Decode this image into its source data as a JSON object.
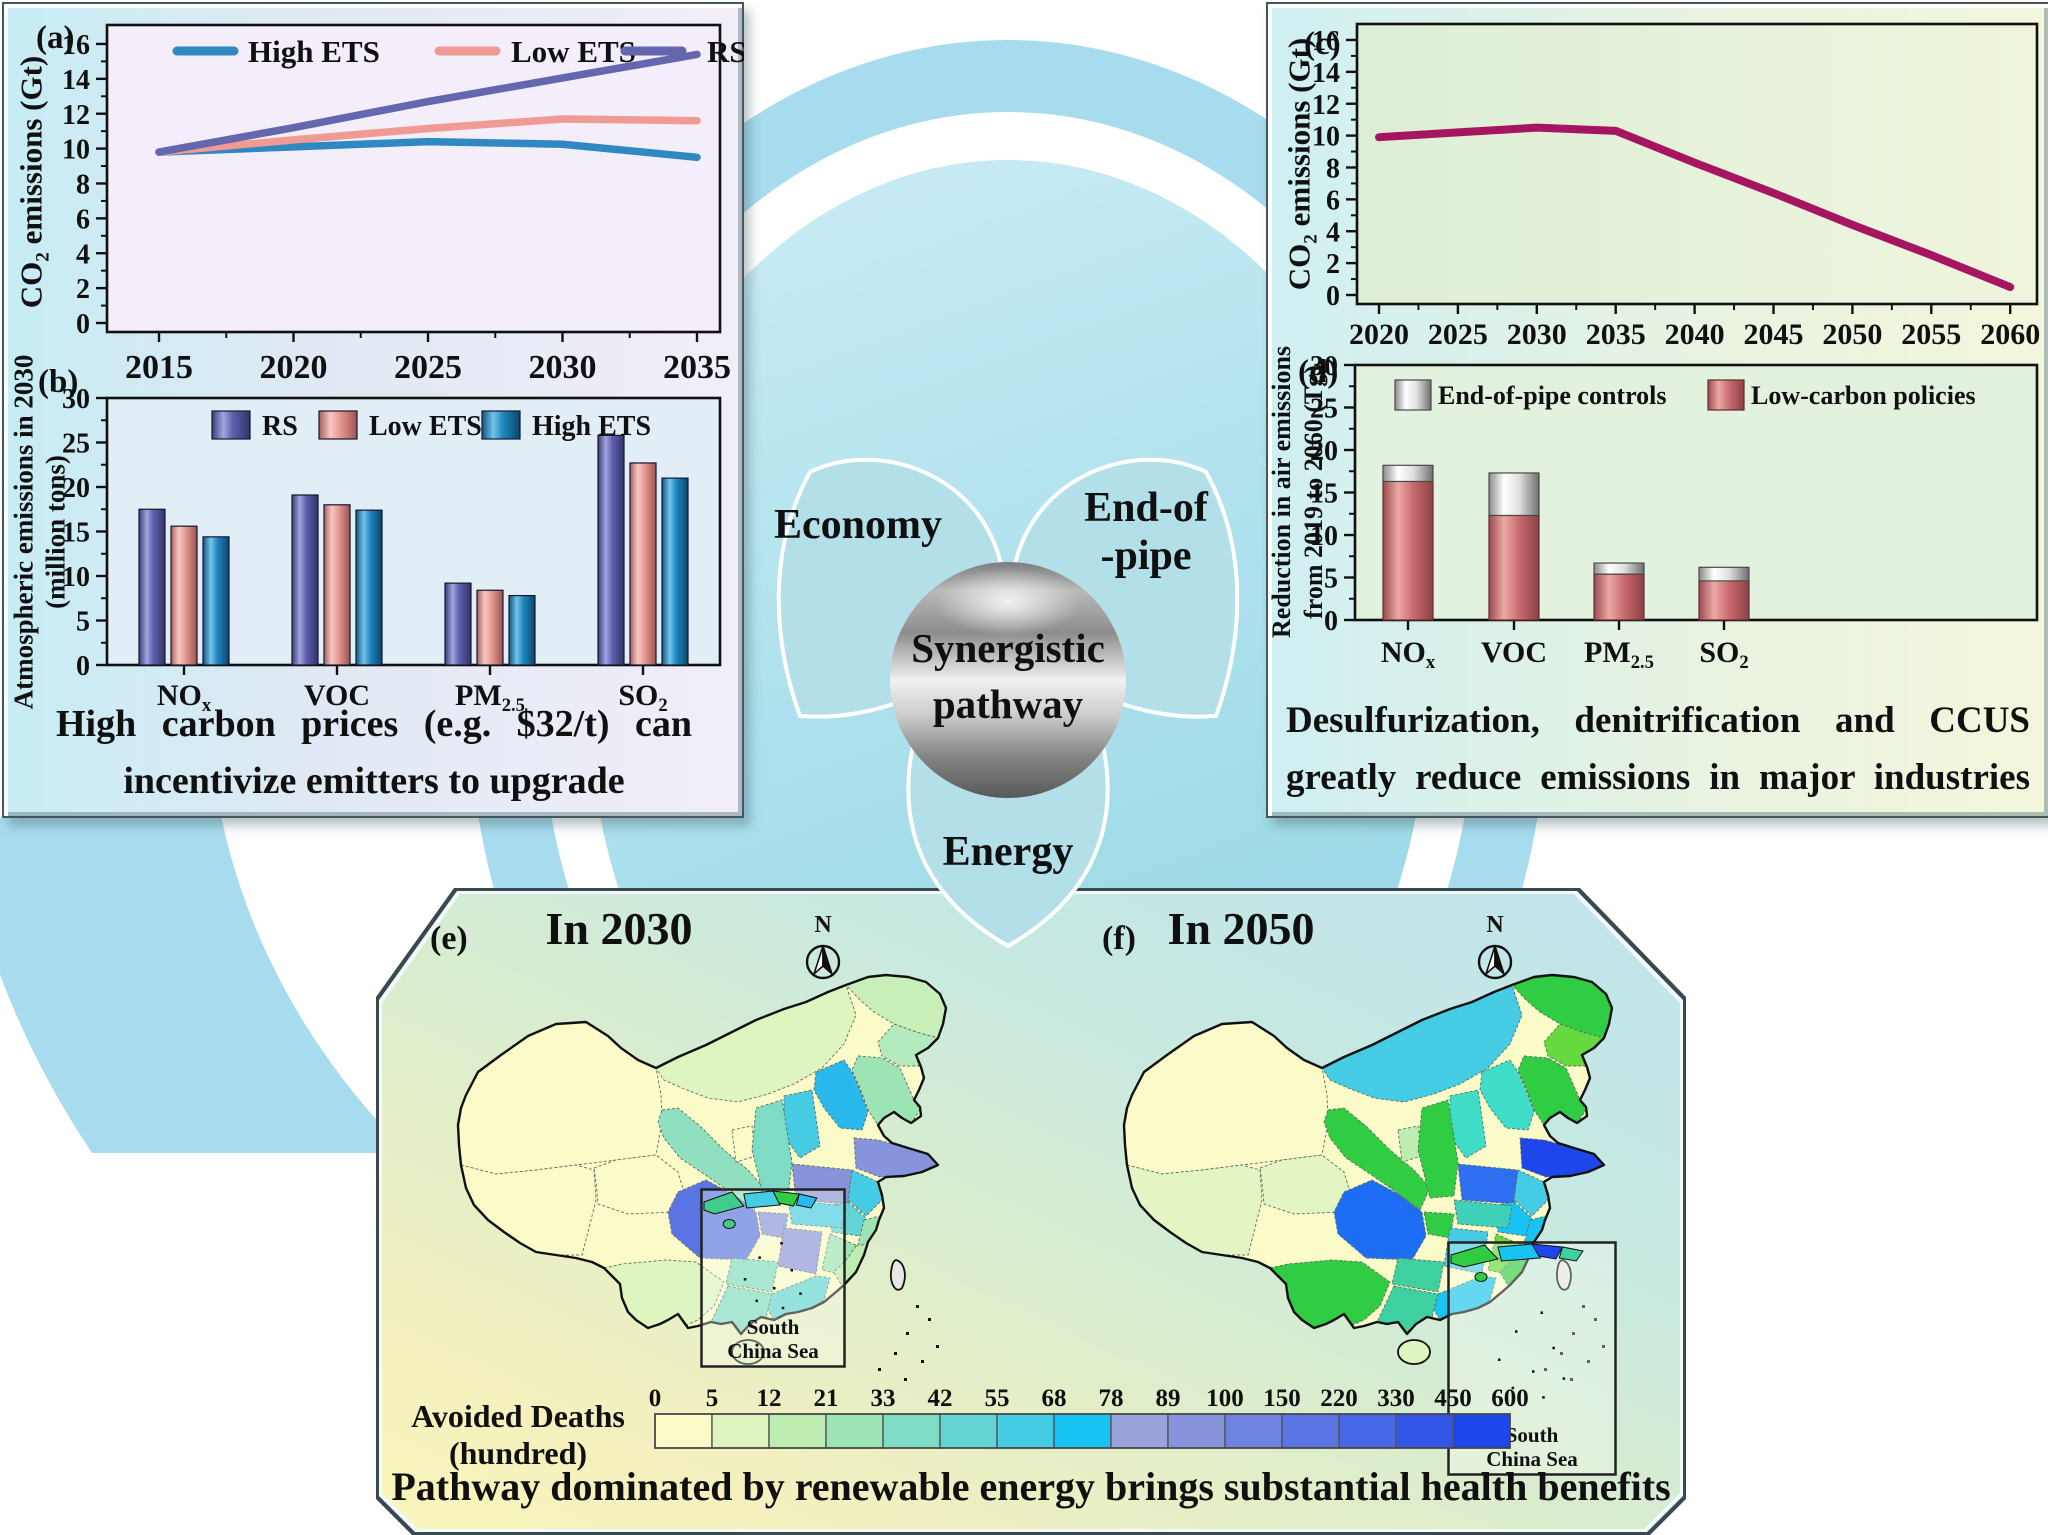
{
  "panels": {
    "a": {
      "letter": "(a)"
    },
    "b": {
      "letter": "(b)"
    },
    "c": {
      "letter": "(c)"
    },
    "d": {
      "letter": "(d)"
    },
    "e": {
      "letter": "(e)"
    },
    "f": {
      "letter": "(f)"
    }
  },
  "captions": {
    "left": [
      "High carbon prices (e.g. $32/t) can",
      "incentivize emitters to upgrade"
    ],
    "right": [
      "Desulfurization, denitrification and CCUS",
      "greatly reduce emissions in major industries"
    ],
    "bottom": "Pathway dominated by renewable energy brings substantial health benefits"
  },
  "center": {
    "petal_left": "Economy",
    "petal_right": [
      "End-of",
      "-pipe"
    ],
    "petal_bottom": "Energy",
    "sphere": [
      "Synergistic",
      "pathway"
    ]
  },
  "chart_data": [
    {
      "id": "a",
      "type": "line",
      "ylabel": "CO|2| emissions (Gt)",
      "ylim": [
        0,
        16.8
      ],
      "yticks": [
        0,
        2,
        4,
        6,
        8,
        10,
        12,
        14,
        16
      ],
      "x": [
        2015,
        2020,
        2025,
        2030,
        2035
      ],
      "xticks": [
        2015,
        2020,
        2025,
        2030,
        2035
      ],
      "legend_position": "top-inside",
      "series": [
        {
          "name": "High ETS",
          "color": "#2f88c2",
          "values": [
            9.8,
            10.1,
            10.4,
            10.25,
            9.5
          ]
        },
        {
          "name": "Low ETS",
          "color": "#ef9a93",
          "values": [
            9.8,
            10.5,
            11.15,
            11.7,
            11.6
          ]
        },
        {
          "name": "RS",
          "color": "#6466ae",
          "values": [
            9.8,
            11.2,
            12.7,
            14.05,
            15.4
          ]
        }
      ]
    },
    {
      "id": "b",
      "type": "bar",
      "ylabel": [
        "Atmospheric emissions in 2030",
        "(million tons)"
      ],
      "ylim": [
        0,
        30
      ],
      "yticks": [
        0,
        5,
        10,
        15,
        20,
        25,
        30
      ],
      "categories": [
        "NO|x",
        "VOC",
        "PM|2.5",
        "SO|2"
      ],
      "series": [
        {
          "name": "RS",
          "color": "#5d5fae",
          "values": [
            17.5,
            19.1,
            9.2,
            25.8
          ]
        },
        {
          "name": "Low ETS",
          "color": "#e59a94",
          "values": [
            15.6,
            18.0,
            8.4,
            22.7
          ]
        },
        {
          "name": "High ETS",
          "color": "#1f87c0",
          "values": [
            14.4,
            17.4,
            7.8,
            21.0
          ]
        }
      ]
    },
    {
      "id": "c",
      "type": "line",
      "ylabel": "CO|2| emissions (Gt)",
      "ylim": [
        0,
        16.8
      ],
      "yticks": [
        0,
        2,
        4,
        6,
        8,
        10,
        12,
        14,
        16
      ],
      "x": [
        2020,
        2025,
        2030,
        2035,
        2040,
        2045,
        2050,
        2055,
        2060
      ],
      "xticks": [
        2020,
        2025,
        2030,
        2035,
        2040,
        2045,
        2050,
        2055,
        2060
      ],
      "series": [
        {
          "name": "Synergistic pathway",
          "color": "#a61562",
          "values": [
            9.9,
            10.2,
            10.5,
            10.3,
            8.3,
            6.4,
            4.4,
            2.5,
            0.5
          ]
        }
      ]
    },
    {
      "id": "d",
      "type": "stacked-bar",
      "ylabel": [
        "Reduction in air emissions",
        "from 2019 to 2060 (Tg)"
      ],
      "ylim": [
        0,
        30
      ],
      "yticks": [
        0,
        5,
        10,
        15,
        20,
        25,
        30
      ],
      "categories": [
        "NO|x",
        "VOC",
        "PM|2.5",
        "SO|2"
      ],
      "series": [
        {
          "name": "End-of-pipe controls",
          "swatch": "gray",
          "values": [
            1.9,
            5.0,
            1.3,
            1.6
          ]
        },
        {
          "name": "Low-carbon policies",
          "swatch": "rose",
          "values": [
            16.3,
            12.3,
            5.4,
            4.6
          ]
        }
      ]
    }
  ],
  "maps": {
    "legend": {
      "title": "Avoided Deaths（hundred）",
      "ticks": [
        0,
        5,
        12,
        21,
        33,
        42,
        55,
        68,
        78,
        89,
        100,
        150,
        220,
        330,
        450,
        600
      ],
      "colors": [
        "#FBFBC9",
        "#DFF5C0",
        "#BDEDB0",
        "#9CE4B4",
        "#7EDCC4",
        "#62D4D4",
        "#45CBE3",
        "#17C3F2",
        "#9BA3DC",
        "#8793DB",
        "#6F84E0",
        "#5A74E3",
        "#4867E6",
        "#3356E8",
        "#1D46EB"
      ]
    },
    "e": {
      "letter": "(e)",
      "title": "In 2030",
      "compass": "N",
      "inset_label": [
        "South",
        "China Sea"
      ],
      "inset_patches": [
        "#3FCC8C",
        "#45CBE3",
        "#2FCC44",
        "#29B9EC"
      ],
      "regions": {
        "xinjiang": "#FBFBC9",
        "tibet": "#FBFBC9",
        "qinghai": "#FBFBC9",
        "gansu": "#8FDFC0",
        "ningxia": "#FBFBC9",
        "inner_mongolia": "#DFF5C0",
        "heilongjiang": "#C8EFB8",
        "jilin": "#B4EBBE",
        "liaoning": "#9CE4B4",
        "hebei": "#29B9EC",
        "shanxi": "#45CBE3",
        "shaanxi": "#7EDCC4",
        "shandong": "#8793DB",
        "henan": "#8793DB",
        "jiangsu": "#45CBE3",
        "anhui": "#62D4D4",
        "hubei": "#45CBE3",
        "chongqing": "#8793DB",
        "sichuan": "#5A74E3",
        "zhejiang": "#9CE4B4",
        "jiangxi": "#9CE4B4",
        "fujian": "#BDEDB0",
        "hunan": "#8793DB",
        "guizhou": "#7EDCC4",
        "yunnan": "#DFF5C0",
        "guangxi": "#7EDCC4",
        "guangdong": "#62D4D4",
        "hainan": "#DFF5C0",
        "taiwan": "#E6E6E6"
      }
    },
    "f": {
      "letter": "(f)",
      "title": "In 2050",
      "compass": "N",
      "inset_label": [
        "South",
        "China Sea"
      ],
      "inset_patches": [
        "#2FCC44",
        "#17C3F2",
        "#1D46EB",
        "#3FD0A0"
      ],
      "regions": {
        "xinjiang": "#FBFBC9",
        "tibet": "#E4F5C4",
        "qinghai": "#E4F5C4",
        "gansu": "#2FCC44",
        "ningxia": "#BDEDB0",
        "inner_mongolia": "#45CBE3",
        "heilongjiang": "#2FCC44",
        "jilin": "#66D93E",
        "liaoning": "#2FCC44",
        "hebei": "#3FDCC8",
        "shanxi": "#3FDCC8",
        "shaanxi": "#2FCC44",
        "shandong": "#1D46EB",
        "henan": "#2E6EF0",
        "jiangsu": "#45CBE3",
        "anhui": "#17C3F2",
        "hubei": "#3FD0B8",
        "chongqing": "#2FCC44",
        "sichuan": "#1E6EF5",
        "zhejiang": "#17C3F2",
        "jiangxi": "#66D93E",
        "fujian": "#2FCC44",
        "hunan": "#45CBE3",
        "guizhou": "#3FD0A0",
        "yunnan": "#2FCC44",
        "guangxi": "#3FD0A0",
        "guangdong": "#17C3F2",
        "hainan": "#DFF5C0",
        "taiwan": "#E6E6E6"
      }
    }
  }
}
